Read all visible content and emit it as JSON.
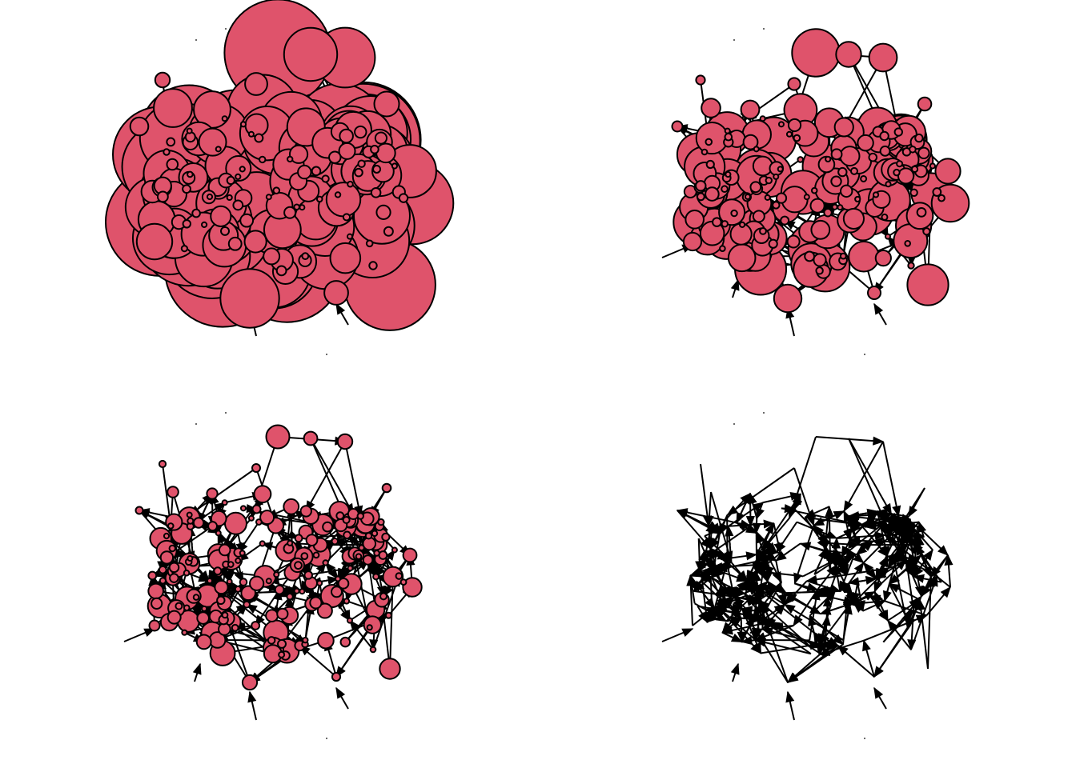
{
  "figure": {
    "panel_count": 4,
    "panels": [
      {
        "position": "top-left",
        "nodes_drawn": true,
        "node_size": "large"
      },
      {
        "position": "top-right",
        "nodes_drawn": true,
        "node_size": "medium"
      },
      {
        "position": "bottom-left",
        "nodes_drawn": true,
        "node_size": "small"
      },
      {
        "position": "bottom-right",
        "nodes_drawn": false,
        "node_size": "none"
      }
    ]
  },
  "colors": {
    "node_fill": "#DF536B",
    "edge": "#000000",
    "background": "#FFFFFF"
  }
}
